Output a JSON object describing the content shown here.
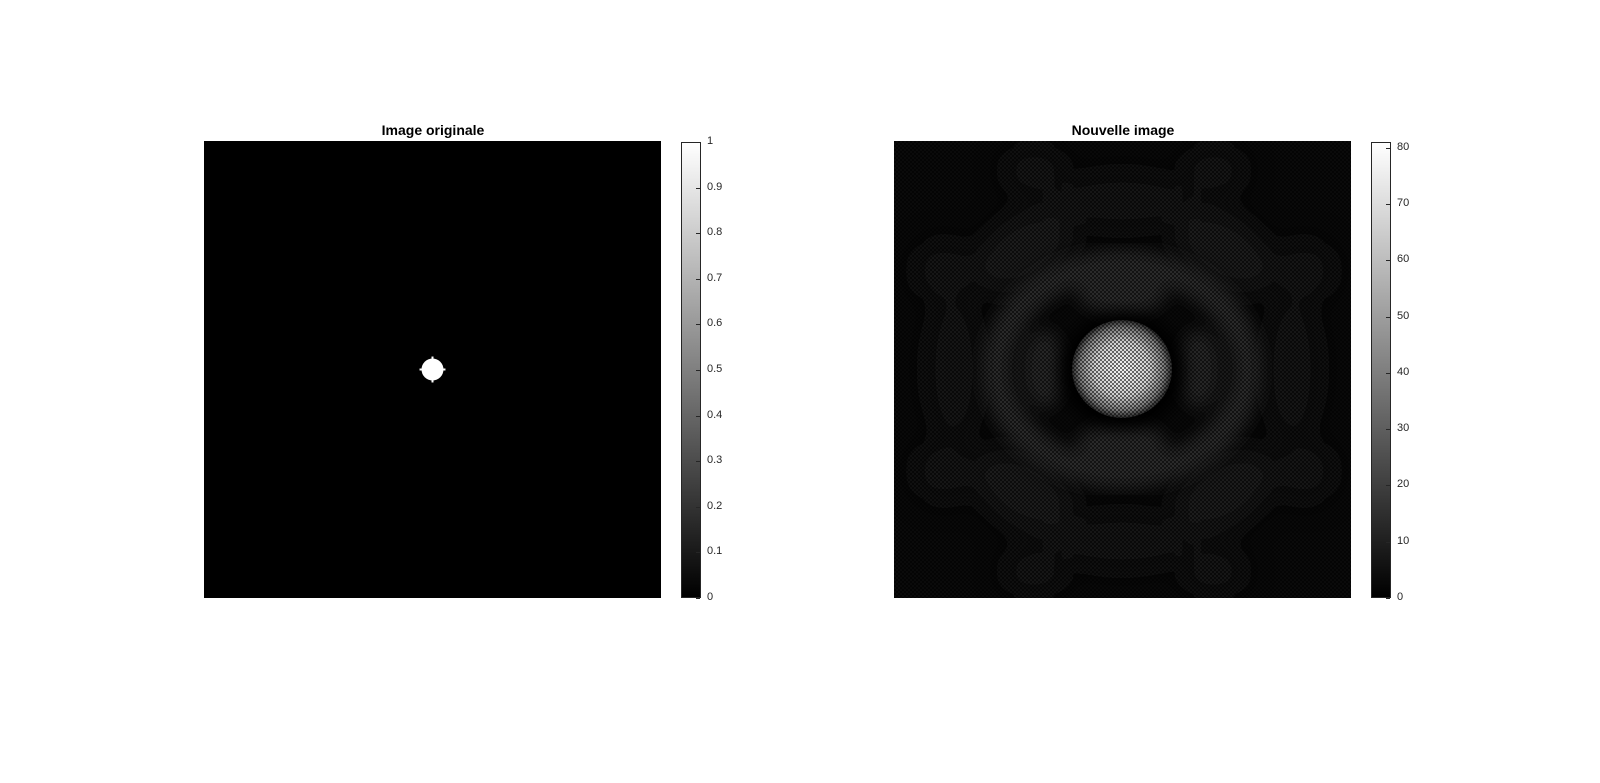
{
  "figure": {
    "panels": [
      {
        "title": "Image originale"
      },
      {
        "title": "Nouvelle image"
      }
    ],
    "colormap": "gray",
    "background": "#ffffff"
  },
  "chart_data": [
    {
      "type": "heatmap",
      "title": "Image originale",
      "description": "binary image: black field with one small white square disk at the center",
      "colorbar": {
        "min": 0,
        "max": 1,
        "ticks": [
          0,
          0.1,
          0.2,
          0.3,
          0.4,
          0.5,
          0.6,
          0.7,
          0.8,
          0.9,
          1
        ]
      },
      "feature": {
        "shape": "disk",
        "value": 1,
        "background_value": 0,
        "center_fraction": [
          0.5,
          0.5
        ],
        "radius_fraction": 0.024
      }
    },
    {
      "type": "heatmap",
      "title": "Nouvelle image",
      "description": "Airy-like diffraction pattern: bright central lobe with a checkerboard texture surrounded by faint rings",
      "colorbar": {
        "min": 0,
        "max": 81,
        "ticks": [
          0,
          10,
          20,
          30,
          40,
          50,
          60,
          70,
          80
        ]
      },
      "central_peak": 81,
      "texture": "checkerboard"
    }
  ]
}
